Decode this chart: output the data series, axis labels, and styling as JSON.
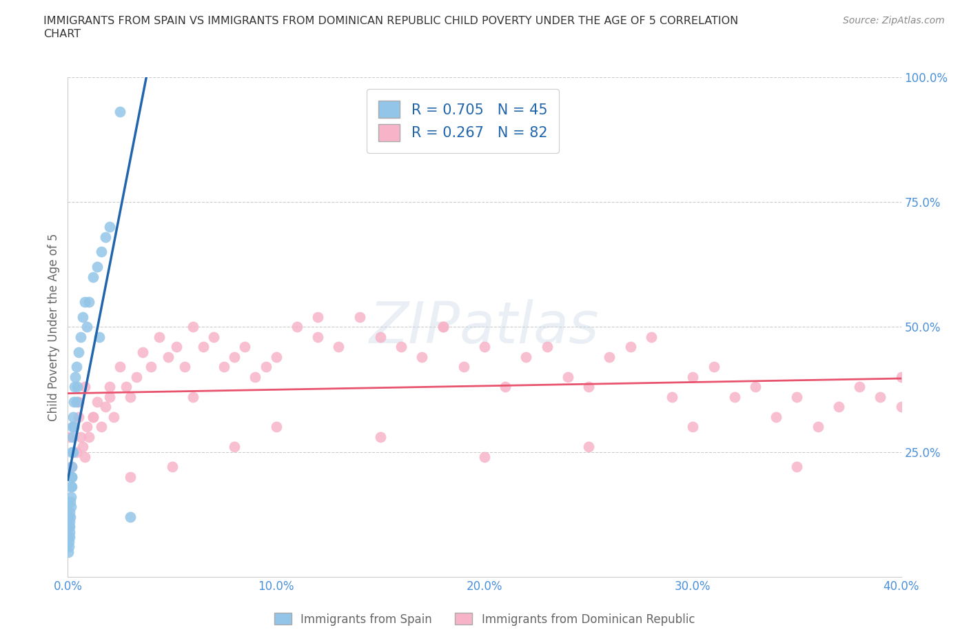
{
  "title_line1": "IMMIGRANTS FROM SPAIN VS IMMIGRANTS FROM DOMINICAN REPUBLIC CHILD POVERTY UNDER THE AGE OF 5 CORRELATION",
  "title_line2": "CHART",
  "source": "Source: ZipAtlas.com",
  "ylabel": "Child Poverty Under the Age of 5",
  "xlim": [
    0.0,
    0.4
  ],
  "ylim": [
    0.0,
    1.0
  ],
  "xticks": [
    0.0,
    0.1,
    0.2,
    0.3,
    0.4
  ],
  "xtick_labels": [
    "0.0%",
    "10.0%",
    "20.0%",
    "30.0%",
    "40.0%"
  ],
  "yticks": [
    0.0,
    0.25,
    0.5,
    0.75,
    1.0
  ],
  "ytick_labels": [
    "",
    "25.0%",
    "50.0%",
    "75.0%",
    "100.0%"
  ],
  "spain_color": "#92c5e8",
  "dr_color": "#f7b4c8",
  "spain_line_color": "#2166ac",
  "dr_line_color": "#e8536e",
  "R_spain": 0.705,
  "N_spain": 45,
  "R_dr": 0.267,
  "N_dr": 82,
  "spain_x": [
    0.0002,
    0.0003,
    0.0004,
    0.0005,
    0.0005,
    0.0006,
    0.0007,
    0.0008,
    0.0009,
    0.001,
    0.001,
    0.0012,
    0.0013,
    0.0014,
    0.0015,
    0.0016,
    0.0017,
    0.0018,
    0.0019,
    0.002,
    0.002,
    0.0022,
    0.0023,
    0.0025,
    0.0026,
    0.003,
    0.003,
    0.0032,
    0.0035,
    0.004,
    0.004,
    0.0045,
    0.005,
    0.006,
    0.007,
    0.008,
    0.009,
    0.01,
    0.012,
    0.014,
    0.016,
    0.018,
    0.02,
    0.03,
    0.015
  ],
  "spain_y": [
    0.05,
    0.08,
    0.06,
    0.1,
    0.12,
    0.07,
    0.09,
    0.11,
    0.08,
    0.13,
    0.1,
    0.15,
    0.12,
    0.14,
    0.18,
    0.16,
    0.2,
    0.22,
    0.18,
    0.25,
    0.2,
    0.28,
    0.3,
    0.25,
    0.32,
    0.35,
    0.3,
    0.38,
    0.4,
    0.35,
    0.42,
    0.38,
    0.45,
    0.48,
    0.52,
    0.55,
    0.5,
    0.55,
    0.6,
    0.62,
    0.65,
    0.68,
    0.7,
    0.12,
    0.48
  ],
  "spain_outlier_x": [
    0.025
  ],
  "spain_outlier_y": [
    0.93
  ],
  "dr_x": [
    0.001,
    0.002,
    0.003,
    0.004,
    0.005,
    0.006,
    0.007,
    0.008,
    0.009,
    0.01,
    0.012,
    0.014,
    0.016,
    0.018,
    0.02,
    0.022,
    0.025,
    0.028,
    0.03,
    0.033,
    0.036,
    0.04,
    0.044,
    0.048,
    0.052,
    0.056,
    0.06,
    0.065,
    0.07,
    0.075,
    0.08,
    0.085,
    0.09,
    0.095,
    0.1,
    0.11,
    0.12,
    0.13,
    0.14,
    0.15,
    0.16,
    0.17,
    0.18,
    0.19,
    0.2,
    0.21,
    0.22,
    0.23,
    0.24,
    0.25,
    0.26,
    0.27,
    0.28,
    0.29,
    0.3,
    0.31,
    0.32,
    0.33,
    0.34,
    0.35,
    0.36,
    0.37,
    0.38,
    0.39,
    0.4,
    0.005,
    0.008,
    0.012,
    0.02,
    0.03,
    0.05,
    0.08,
    0.1,
    0.15,
    0.2,
    0.25,
    0.3,
    0.35,
    0.4,
    0.12,
    0.18,
    0.06
  ],
  "dr_y": [
    0.28,
    0.22,
    0.3,
    0.25,
    0.32,
    0.28,
    0.26,
    0.24,
    0.3,
    0.28,
    0.32,
    0.35,
    0.3,
    0.34,
    0.38,
    0.32,
    0.42,
    0.38,
    0.36,
    0.4,
    0.45,
    0.42,
    0.48,
    0.44,
    0.46,
    0.42,
    0.5,
    0.46,
    0.48,
    0.42,
    0.44,
    0.46,
    0.4,
    0.42,
    0.44,
    0.5,
    0.48,
    0.46,
    0.52,
    0.48,
    0.46,
    0.44,
    0.5,
    0.42,
    0.46,
    0.38,
    0.44,
    0.46,
    0.4,
    0.38,
    0.44,
    0.46,
    0.48,
    0.36,
    0.4,
    0.42,
    0.36,
    0.38,
    0.32,
    0.36,
    0.3,
    0.34,
    0.38,
    0.36,
    0.4,
    0.35,
    0.38,
    0.32,
    0.36,
    0.2,
    0.22,
    0.26,
    0.3,
    0.28,
    0.24,
    0.26,
    0.3,
    0.22,
    0.34,
    0.52,
    0.5,
    0.36
  ]
}
